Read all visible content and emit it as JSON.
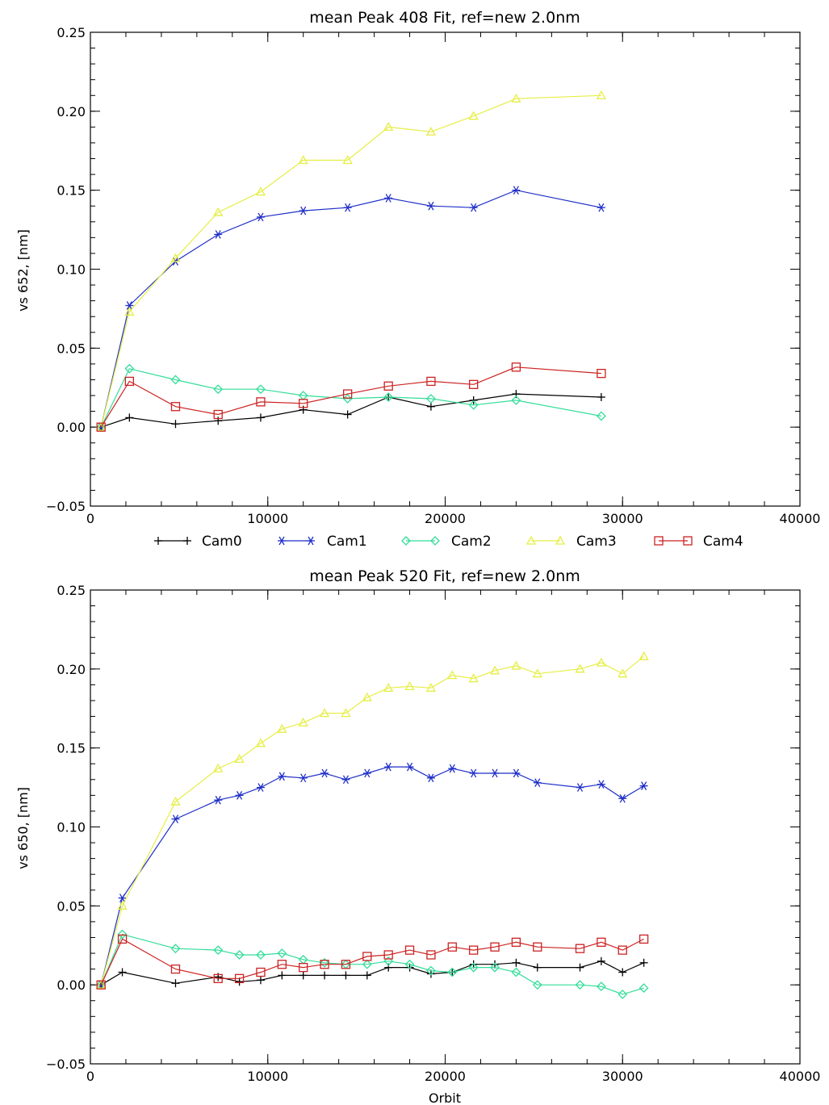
{
  "colors": {
    "Cam0": "#000000",
    "Cam1": "#1f2fc8",
    "Cam2": "#33dd99",
    "Cam3": "#e6ee44",
    "Cam4": "#cc2222"
  },
  "legend": {
    "entries": [
      "Cam0",
      "Cam1",
      "Cam2",
      "Cam3",
      "Cam4"
    ],
    "placement": "between-panels-centered"
  },
  "chart_data": [
    {
      "type": "line",
      "title": "mean Peak 408 Fit, ref=new 2.0nm",
      "xlabel": "",
      "ylabel": "vs 652, [nm]",
      "xlim": [
        0,
        40000
      ],
      "ylim": [
        -0.05,
        0.25
      ],
      "xticks": [
        0,
        10000,
        20000,
        30000,
        40000
      ],
      "yticks": [
        -0.05,
        0.0,
        0.05,
        0.1,
        0.15,
        0.2,
        0.25
      ],
      "xtick_labels": [
        "0",
        "10000",
        "20000",
        "30000",
        "40000"
      ],
      "ytick_labels": [
        "−0.05",
        "0.00",
        "0.05",
        "0.10",
        "0.15",
        "0.20",
        "0.25"
      ],
      "grid": false,
      "x": [
        600,
        2200,
        4800,
        7200,
        9600,
        12000,
        14500,
        16800,
        19200,
        21600,
        24000,
        28800
      ],
      "series": [
        {
          "name": "Cam0",
          "marker": "plus",
          "values": [
            0.0,
            0.006,
            0.002,
            0.004,
            0.006,
            0.011,
            0.008,
            0.019,
            0.013,
            0.017,
            0.021,
            0.019
          ]
        },
        {
          "name": "Cam1",
          "marker": "asterisk",
          "values": [
            0.0,
            0.077,
            0.105,
            0.122,
            0.133,
            0.137,
            0.139,
            0.145,
            0.14,
            0.139,
            0.15,
            0.139
          ]
        },
        {
          "name": "Cam2",
          "marker": "diamond",
          "values": [
            0.0,
            0.037,
            0.03,
            0.024,
            0.024,
            0.02,
            0.018,
            0.019,
            0.018,
            0.014,
            0.017,
            0.007
          ]
        },
        {
          "name": "Cam3",
          "marker": "triangle",
          "values": [
            0.0,
            0.073,
            0.107,
            0.136,
            0.149,
            0.169,
            0.169,
            0.19,
            0.187,
            0.197,
            0.208,
            0.21
          ]
        },
        {
          "name": "Cam4",
          "marker": "square",
          "values": [
            0.0,
            0.029,
            0.013,
            0.008,
            0.016,
            0.015,
            0.021,
            0.026,
            0.029,
            0.027,
            0.038,
            0.034
          ]
        }
      ]
    },
    {
      "type": "line",
      "title": "mean Peak 520 Fit, ref=new 2.0nm",
      "xlabel": "Orbit",
      "ylabel": "vs 650, [nm]",
      "xlim": [
        0,
        40000
      ],
      "ylim": [
        -0.05,
        0.25
      ],
      "xticks": [
        0,
        10000,
        20000,
        30000,
        40000
      ],
      "yticks": [
        -0.05,
        0.0,
        0.05,
        0.1,
        0.15,
        0.2,
        0.25
      ],
      "xtick_labels": [
        "0",
        "10000",
        "20000",
        "30000",
        "40000"
      ],
      "ytick_labels": [
        "−0.05",
        "0.00",
        "0.05",
        "0.10",
        "0.15",
        "0.20",
        "0.25"
      ],
      "grid": false,
      "x": [
        600,
        1800,
        4800,
        7200,
        8400,
        9600,
        10800,
        12000,
        13200,
        14400,
        15600,
        16800,
        18000,
        19200,
        20400,
        21600,
        22800,
        24000,
        25200,
        27600,
        28800,
        30000,
        31200
      ],
      "series": [
        {
          "name": "Cam0",
          "marker": "plus",
          "values": [
            0.0,
            0.008,
            0.001,
            0.005,
            0.002,
            0.003,
            0.006,
            0.006,
            0.006,
            0.006,
            0.006,
            0.011,
            0.011,
            0.007,
            0.008,
            0.013,
            0.013,
            0.014,
            0.011,
            0.011,
            0.015,
            0.008,
            0.014
          ]
        },
        {
          "name": "Cam1",
          "marker": "asterisk",
          "values": [
            0.0,
            0.055,
            0.105,
            0.117,
            0.12,
            0.125,
            0.132,
            0.131,
            0.134,
            0.13,
            0.134,
            0.138,
            0.138,
            0.131,
            0.137,
            0.134,
            0.134,
            0.134,
            0.128,
            0.125,
            0.127,
            0.118,
            0.126
          ]
        },
        {
          "name": "Cam2",
          "marker": "diamond",
          "values": [
            0.0,
            0.032,
            0.023,
            0.022,
            0.019,
            0.019,
            0.02,
            0.016,
            0.014,
            0.013,
            0.013,
            0.015,
            0.013,
            0.009,
            0.008,
            0.011,
            0.011,
            0.008,
            0.0,
            0.0,
            -0.001,
            -0.006,
            -0.002
          ]
        },
        {
          "name": "Cam3",
          "marker": "triangle",
          "values": [
            0.0,
            0.05,
            0.116,
            0.137,
            0.143,
            0.153,
            0.162,
            0.166,
            0.172,
            0.172,
            0.182,
            0.188,
            0.189,
            0.188,
            0.196,
            0.194,
            0.199,
            0.202,
            0.197,
            0.2,
            0.204,
            0.197,
            0.208
          ]
        },
        {
          "name": "Cam4",
          "marker": "square",
          "values": [
            0.0,
            0.029,
            0.01,
            0.004,
            0.004,
            0.008,
            0.013,
            0.011,
            0.013,
            0.013,
            0.018,
            0.019,
            0.022,
            0.019,
            0.024,
            0.022,
            0.024,
            0.027,
            0.024,
            0.023,
            0.027,
            0.022,
            0.029
          ]
        }
      ]
    }
  ]
}
